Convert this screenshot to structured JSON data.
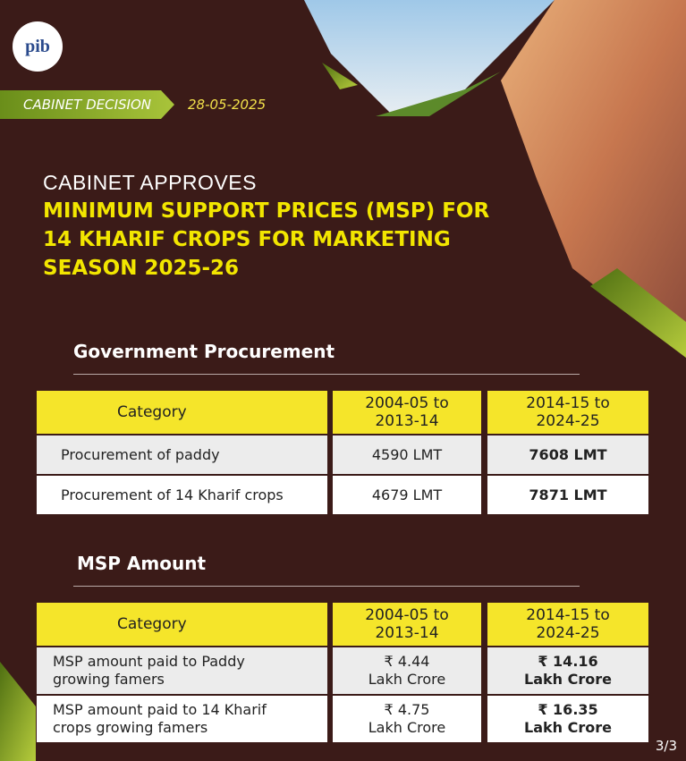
{
  "header": {
    "logo": "pib",
    "tag": "CABINET DECISION",
    "date": "28-05-2025"
  },
  "title": {
    "lead": "CABINET APPROVES",
    "lines": [
      "MINIMUM SUPPORT PRICES (MSP) FOR",
      "14 KHARIF CROPS FOR MARKETING",
      "SEASON 2025-26"
    ]
  },
  "sections": [
    {
      "heading": "Government Procurement",
      "table": {
        "header": [
          "Category",
          [
            "2004-05 to",
            "2013-14"
          ],
          [
            "2014-15 to",
            "2024-25"
          ]
        ],
        "rows": [
          [
            "Procurement of paddy",
            "4590 LMT",
            "7608 LMT"
          ],
          [
            "Procurement of 14 Kharif crops",
            "4679 LMT",
            "7871 LMT"
          ]
        ]
      }
    },
    {
      "heading": "MSP Amount",
      "table": {
        "header": [
          "Category",
          [
            "2004-05 to",
            "2013-14"
          ],
          [
            "2014-15 to",
            "2024-25"
          ]
        ],
        "rows": [
          [
            [
              "MSP amount paid to Paddy",
              "growing famers"
            ],
            [
              "₹ 4.44",
              "Lakh Crore"
            ],
            [
              "₹ 14.16",
              "Lakh Crore"
            ]
          ],
          [
            [
              "MSP amount paid to 14 Kharif",
              "crops growing famers"
            ],
            [
              "₹ 4.75",
              "Lakh Crore"
            ],
            [
              "₹ 16.35",
              "Lakh Crore"
            ]
          ]
        ]
      }
    }
  ],
  "footer": {
    "page": "3/3"
  }
}
